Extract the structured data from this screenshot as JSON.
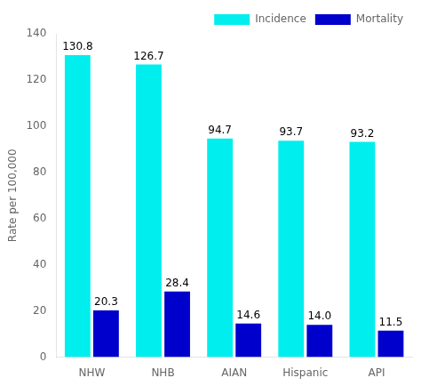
{
  "chart_data": {
    "type": "bar",
    "categories": [
      "NHW",
      "NHB",
      "AIAN",
      "Hispanic",
      "API"
    ],
    "series": [
      {
        "name": "Incidence",
        "color": "#00EEEE",
        "values": [
          130.8,
          126.7,
          94.7,
          93.7,
          93.2
        ]
      },
      {
        "name": "Mortality",
        "color": "#0000CC",
        "values": [
          20.3,
          28.4,
          14.6,
          14.0,
          11.5
        ],
        "value_labels": [
          "20.3",
          "28.4",
          "14.6",
          "14.0",
          "11.5"
        ]
      }
    ],
    "ylabel": "Rate per 100,000",
    "ylim": [
      0,
      140
    ],
    "yticks": [
      0,
      20,
      40,
      60,
      80,
      100,
      120,
      140
    ],
    "data_labels": true,
    "legend": "upper right",
    "grid": false
  }
}
